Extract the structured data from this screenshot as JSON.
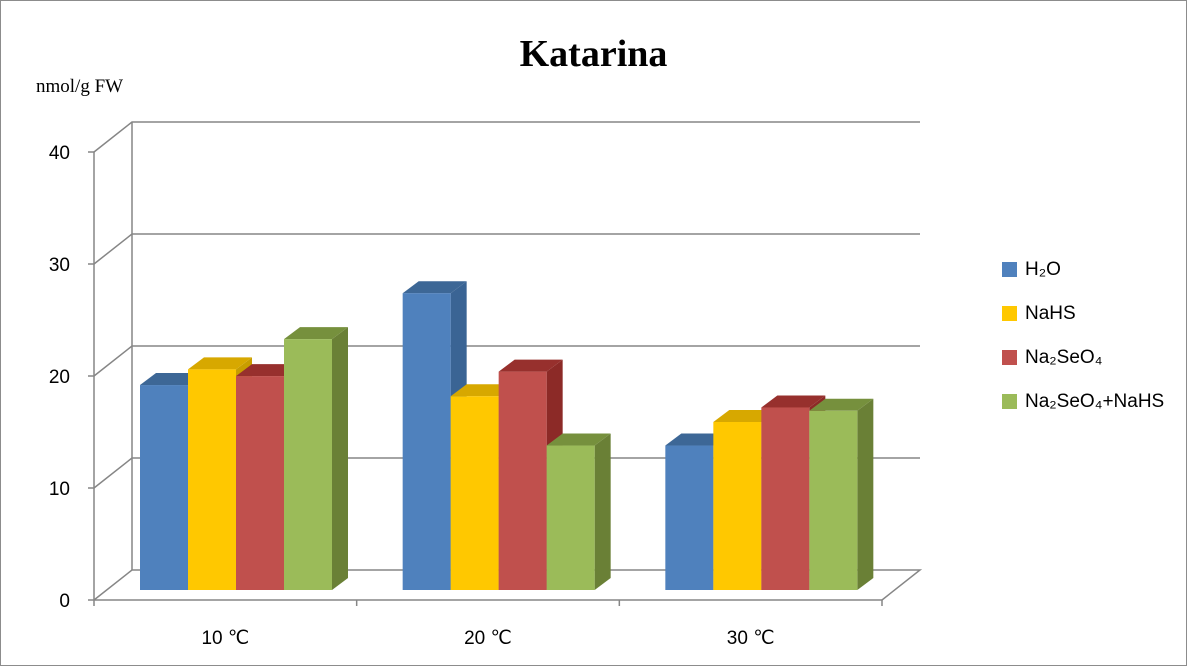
{
  "chart_data": {
    "type": "bar",
    "title": "Katarina",
    "ylabel": "nmol/g FW",
    "xlabel": "",
    "categories": [
      "10 ℃",
      "20 ℃",
      "30 ℃"
    ],
    "ylim": [
      0,
      40
    ],
    "yticks": [
      "0",
      "10",
      "20",
      "30",
      "40"
    ],
    "grid": true,
    "legend_position": "right",
    "style": "3d-clustered-column",
    "series": [
      {
        "name": "H₂O",
        "values": [
          18.3,
          26.5,
          12.9
        ],
        "color": "#4f81bd",
        "side": "#3a6494",
        "top": "#3d6796"
      },
      {
        "name": "NaHS",
        "values": [
          19.7,
          17.3,
          15.0
        ],
        "color": "#ffc800",
        "side": "#c89e00",
        "top": "#d7a800"
      },
      {
        "name": "Na₂SeO₄",
        "values": [
          19.1,
          19.5,
          16.3
        ],
        "color": "#c0504d",
        "side": "#8c2a27",
        "top": "#97302d"
      },
      {
        "name": "Na₂SeO₄+NaHS",
        "values": [
          22.4,
          12.9,
          16.0
        ],
        "color": "#9bbb59",
        "side": "#6a8036",
        "top": "#76903d"
      }
    ]
  }
}
